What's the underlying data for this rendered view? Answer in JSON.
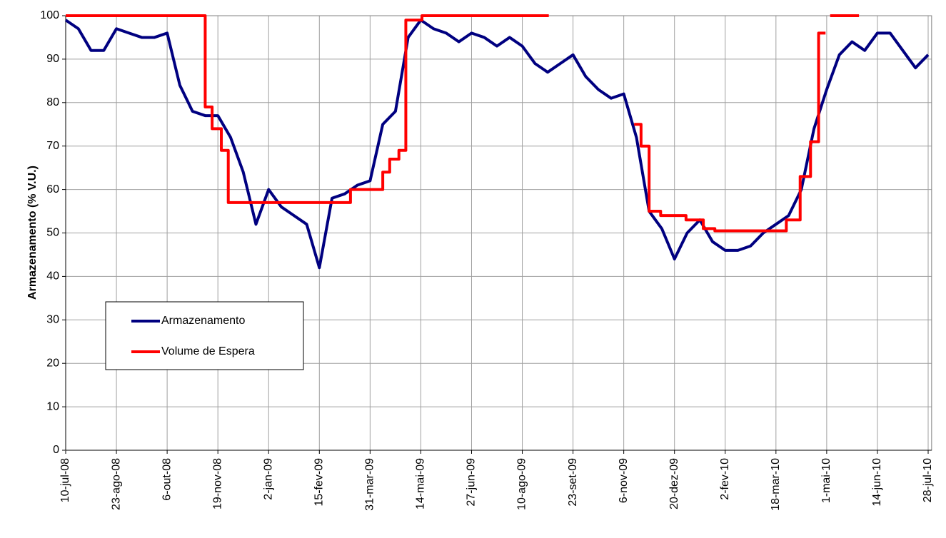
{
  "chart_data": {
    "type": "line",
    "ylabel": "Armazenamento (% V.U.)",
    "ylim": [
      0,
      100
    ],
    "yticks": [
      0,
      10,
      20,
      30,
      40,
      50,
      60,
      70,
      80,
      90,
      100
    ],
    "xlim": [
      "2008-07-10",
      "2010-07-31"
    ],
    "xticks": [
      {
        "value": "2008-07-10",
        "label": "10-jul-08"
      },
      {
        "value": "2008-08-23",
        "label": "23-ago-08"
      },
      {
        "value": "2008-10-06",
        "label": "6-out-08"
      },
      {
        "value": "2008-11-19",
        "label": "19-nov-08"
      },
      {
        "value": "2009-01-02",
        "label": "2-jan-09"
      },
      {
        "value": "2009-02-15",
        "label": "15-fev-09"
      },
      {
        "value": "2009-03-31",
        "label": "31-mar-09"
      },
      {
        "value": "2009-05-14",
        "label": "14-mai-09"
      },
      {
        "value": "2009-06-27",
        "label": "27-jun-09"
      },
      {
        "value": "2009-08-10",
        "label": "10-ago-09"
      },
      {
        "value": "2009-09-23",
        "label": "23-set-09"
      },
      {
        "value": "2009-11-06",
        "label": "6-nov-09"
      },
      {
        "value": "2009-12-20",
        "label": "20-dez-09"
      },
      {
        "value": "2010-02-02",
        "label": "2-fev-10"
      },
      {
        "value": "2010-03-18",
        "label": "18-mar-10"
      },
      {
        "value": "2010-05-01",
        "label": "1-mai-10"
      },
      {
        "value": "2010-06-14",
        "label": "14-jun-10"
      },
      {
        "value": "2010-07-28",
        "label": "28-jul-10"
      }
    ],
    "grid": true,
    "legend": "lower left",
    "series": [
      {
        "name": "Armazenamento",
        "color": "#000080",
        "step": false,
        "x": [
          "2008-07-10",
          "2008-07-21",
          "2008-08-01",
          "2008-08-12",
          "2008-08-23",
          "2008-09-03",
          "2008-09-14",
          "2008-09-25",
          "2008-10-06",
          "2008-10-17",
          "2008-10-28",
          "2008-11-08",
          "2008-11-19",
          "2008-11-30",
          "2008-12-11",
          "2008-12-22",
          "2009-01-02",
          "2009-01-13",
          "2009-01-24",
          "2009-02-04",
          "2009-02-15",
          "2009-02-26",
          "2009-03-09",
          "2009-03-20",
          "2009-03-31",
          "2009-04-11",
          "2009-04-22",
          "2009-05-03",
          "2009-05-14",
          "2009-05-25",
          "2009-06-05",
          "2009-06-16",
          "2009-06-27",
          "2009-07-08",
          "2009-07-19",
          "2009-07-30",
          "2009-08-10",
          "2009-08-21",
          "2009-09-01",
          "2009-09-12",
          "2009-09-23",
          "2009-10-04",
          "2009-10-15",
          "2009-10-26",
          "2009-11-06",
          "2009-11-17",
          "2009-11-28",
          "2009-12-09",
          "2009-12-20",
          "2009-12-31",
          "2010-01-11",
          "2010-01-22",
          "2010-02-02",
          "2010-02-13",
          "2010-02-24",
          "2010-03-07",
          "2010-03-18",
          "2010-03-29",
          "2010-04-09",
          "2010-04-20",
          "2010-05-01",
          "2010-05-12",
          "2010-05-23",
          "2010-06-03",
          "2010-06-14",
          "2010-06-25",
          "2010-07-06",
          "2010-07-17",
          "2010-07-28"
        ],
        "values": [
          99,
          97,
          92,
          92,
          97,
          96,
          95,
          95,
          96,
          84,
          78,
          77,
          77,
          72,
          64,
          52,
          60,
          56,
          54,
          52,
          42,
          58,
          59,
          61,
          62,
          75,
          78,
          95,
          99,
          97,
          96,
          94,
          96,
          95,
          93,
          95,
          93,
          89,
          87,
          89,
          91,
          86,
          83,
          81,
          82,
          72,
          55,
          51,
          44,
          50,
          53,
          48,
          46,
          46,
          47,
          50,
          52,
          54,
          60,
          74,
          83,
          91,
          94,
          92,
          96,
          96,
          92,
          88,
          91
        ]
      },
      {
        "name": "Volume de Espera",
        "color": "#ff0000",
        "step": true,
        "x": [
          "2008-07-10",
          "2008-11-08",
          "2008-11-14",
          "2008-11-22",
          "2008-11-28",
          "2009-03-14",
          "2009-04-11",
          "2009-04-17",
          "2009-04-25",
          "2009-05-01",
          "2009-05-15",
          "2009-09-02",
          null,
          "2009-11-15",
          "2009-11-21",
          "2009-11-28",
          "2009-12-08",
          "2009-12-30",
          "2010-01-14",
          "2010-01-24",
          "2010-03-27",
          "2010-04-08",
          "2010-04-17",
          "2010-04-24",
          "2010-04-30",
          null,
          "2010-05-04",
          "2010-05-29"
        ],
        "values": [
          100,
          79,
          74,
          69,
          57,
          60,
          64,
          67,
          69,
          99,
          100,
          100,
          null,
          75,
          70,
          55,
          54,
          53,
          51,
          50.5,
          53,
          63,
          71,
          96,
          96,
          null,
          100,
          100
        ]
      }
    ]
  }
}
